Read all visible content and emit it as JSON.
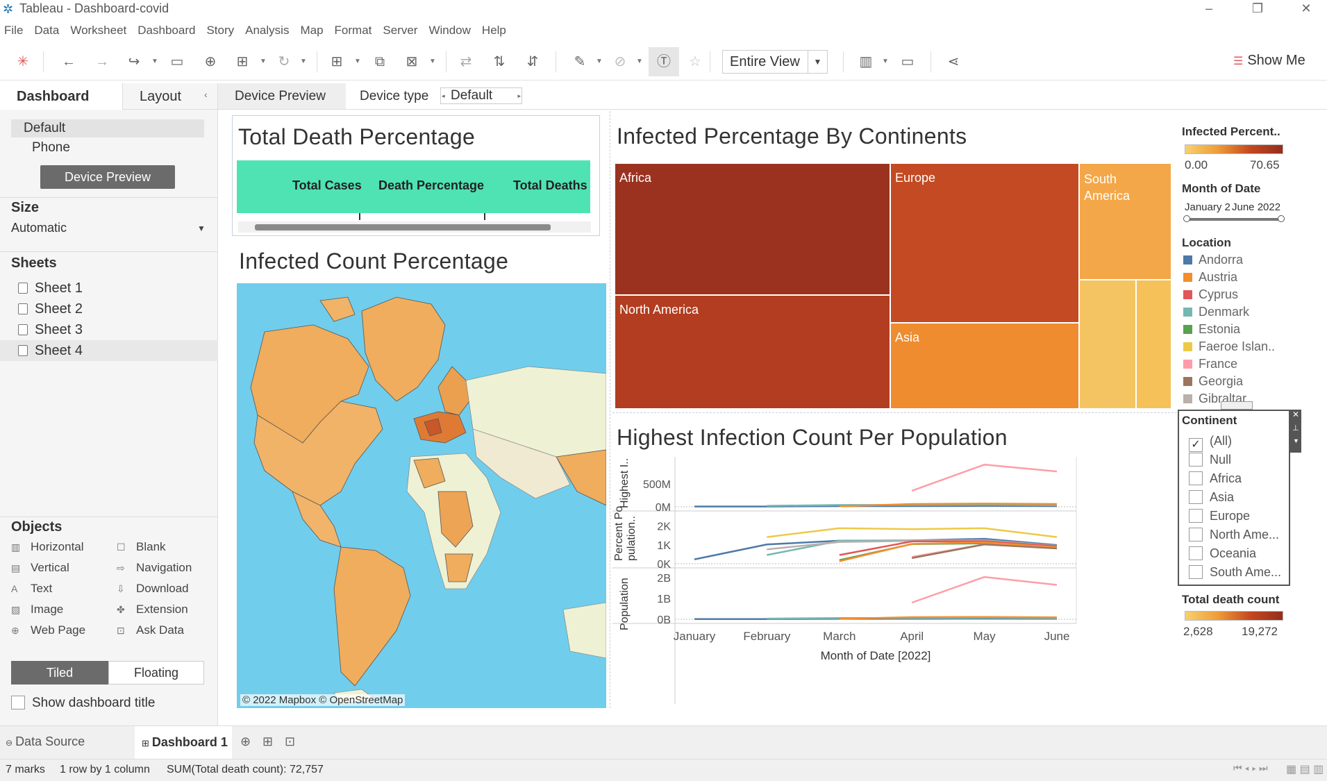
{
  "window": {
    "title": "Tableau - Dashboard-covid"
  },
  "menu": [
    "File",
    "Data",
    "Worksheet",
    "Dashboard",
    "Story",
    "Analysis",
    "Map",
    "Format",
    "Server",
    "Window",
    "Help"
  ],
  "toolbar": {
    "fit_value": "Entire View",
    "show_me": "Show Me"
  },
  "left_panel": {
    "tabs": [
      "Dashboard",
      "Layout"
    ],
    "devices": [
      "Default",
      "Phone"
    ],
    "device_preview_button": "Device Preview",
    "size_title": "Size",
    "size_value": "Automatic",
    "sheets_title": "Sheets",
    "sheets": [
      "Sheet 1",
      "Sheet 2",
      "Sheet 3",
      "Sheet 4"
    ],
    "objects_title": "Objects",
    "objects": [
      {
        "label": "Horizontal",
        "icon": "horizontal-icon"
      },
      {
        "label": "Blank",
        "icon": "blank-icon"
      },
      {
        "label": "Vertical",
        "icon": "vertical-icon"
      },
      {
        "label": "Navigation",
        "icon": "navigation-icon"
      },
      {
        "label": "Text",
        "icon": "text-icon"
      },
      {
        "label": "Download",
        "icon": "download-icon"
      },
      {
        "label": "Image",
        "icon": "image-icon"
      },
      {
        "label": "Extension",
        "icon": "extension-icon"
      },
      {
        "label": "Web Page",
        "icon": "web-page-icon"
      },
      {
        "label": "Ask Data",
        "icon": "ask-data-icon"
      }
    ],
    "tiled": "Tiled",
    "floating": "Floating",
    "show_title": "Show dashboard title"
  },
  "dash_header": {
    "device_preview": "Device Preview",
    "device_type_label": "Device type",
    "device_type_value": "Default"
  },
  "views": {
    "total_death": {
      "title": "Total Death Percentage",
      "columns": [
        "Total Cases",
        "Death Percentage",
        "Total Deaths"
      ]
    },
    "infected_map": {
      "title": "Infected Count Percentage",
      "attribution": "© 2022 Mapbox © OpenStreetMap"
    },
    "treemap": {
      "title": "Infected Percentage By Continents",
      "blocks": [
        {
          "label": "Africa",
          "color": "#9b3220"
        },
        {
          "label": "North America",
          "color": "#b23d20"
        },
        {
          "label": "Europe",
          "color": "#c34a22"
        },
        {
          "label": "Asia",
          "color": "#ee8c2f"
        },
        {
          "label": "South America",
          "color": "#f4a748"
        },
        {
          "label": "",
          "color": "#f5c462"
        },
        {
          "label": "",
          "color": "#f6c158"
        }
      ]
    },
    "line_chart": {
      "title": "Highest Infection Count Per Population",
      "xlabel": "Month of Date [2022]"
    }
  },
  "legends": {
    "infected_percent": {
      "title": "Infected Percent..",
      "min": "0.00",
      "max": "70.65"
    },
    "month_filter": {
      "title": "Month of Date",
      "from": "January 2",
      "to": "June 2022"
    },
    "location": {
      "title": "Location",
      "items": [
        {
          "label": "Andorra",
          "color": "#4e79a7"
        },
        {
          "label": "Austria",
          "color": "#f28e2b"
        },
        {
          "label": "Cyprus",
          "color": "#e15759"
        },
        {
          "label": "Denmark",
          "color": "#76b7b2"
        },
        {
          "label": "Estonia",
          "color": "#59a14f"
        },
        {
          "label": "Faeroe Islan..",
          "color": "#edc948"
        },
        {
          "label": "France",
          "color": "#ff9da7"
        },
        {
          "label": "Georgia",
          "color": "#9c755f"
        },
        {
          "label": "Gibraltar",
          "color": "#bab0ac"
        }
      ]
    },
    "continent": {
      "title": "Continent",
      "items": [
        {
          "label": "(All)",
          "checked": "✓"
        },
        {
          "label": "Null",
          "checked": ""
        },
        {
          "label": "Africa",
          "checked": ""
        },
        {
          "label": "Asia",
          "checked": ""
        },
        {
          "label": "Europe",
          "checked": ""
        },
        {
          "label": "North Ame...",
          "checked": ""
        },
        {
          "label": "Oceania",
          "checked": ""
        },
        {
          "label": "South Ame...",
          "checked": ""
        }
      ]
    },
    "total_death": {
      "title": "Total death count",
      "min": "2,628",
      "max": "19,272"
    }
  },
  "bottom": {
    "data_source": "Data Source",
    "dashboard_tab": "Dashboard 1"
  },
  "status": {
    "marks": "7 marks",
    "layout": "1 row by 1 column",
    "sum": "SUM(Total death count): 72,757"
  },
  "chart_data": {
    "type": "line",
    "title": "Highest Infection Count Per Population",
    "xlabel": "Month of Date [2022]",
    "categories": [
      "January",
      "February",
      "March",
      "April",
      "May",
      "June"
    ],
    "panels": [
      {
        "ylabel": "Highest I..",
        "ticks": [
          "500M",
          "0M"
        ],
        "ylim": [
          0,
          1000000000
        ],
        "series": [
          {
            "name": "Andorra",
            "values": [
              5000000,
              5000000,
              15000000,
              15000000,
              20000000,
              15000000
            ]
          },
          {
            "name": "Denmark",
            "values": [
              null,
              20000000,
              40000000,
              40000000,
              45000000,
              35000000
            ]
          },
          {
            "name": "Austria",
            "values": [
              null,
              null,
              10000000,
              60000000,
              70000000,
              60000000
            ]
          },
          {
            "name": "France",
            "values": [
              null,
              null,
              null,
              350000000,
              920000000,
              770000000
            ]
          }
        ]
      },
      {
        "ylabel": "Percent Po pulation..",
        "ticks": [
          "2K",
          "1K",
          "0K"
        ],
        "ylim": [
          0,
          2500
        ],
        "series": [
          {
            "name": "Andorra",
            "values": [
              230,
              1020,
              1220,
              1230,
              1320,
              990
            ]
          },
          {
            "name": "Faeroe Islan..",
            "values": [
              null,
              1410,
              1880,
              1830,
              1880,
              1410
            ]
          },
          {
            "name": "Denmark",
            "values": [
              null,
              460,
              1210,
              1230,
              1250,
              950
            ]
          },
          {
            "name": "Gibraltar",
            "values": [
              null,
              760,
              1150,
              1210,
              1230,
              940
            ]
          },
          {
            "name": "Cyprus",
            "values": [
              null,
              null,
              460,
              1180,
              1190,
              930
            ]
          },
          {
            "name": "Estonia",
            "values": [
              null,
              null,
              190,
              1040,
              1080,
              830
            ]
          },
          {
            "name": "Austria",
            "values": [
              null,
              null,
              130,
              1050,
              1130,
              870
            ]
          },
          {
            "name": "France",
            "values": [
              null,
              null,
              null,
              360,
              1030,
              820
            ]
          },
          {
            "name": "Georgia",
            "values": [
              null,
              null,
              null,
              300,
              1020,
              810
            ]
          }
        ]
      },
      {
        "ylabel": "Population",
        "ticks": [
          "2B",
          "1B",
          "0B"
        ],
        "ylim": [
          0,
          2200000000
        ],
        "series": [
          {
            "name": "Andorra",
            "values": [
              10000000,
              10000000,
              20000000,
              20000000,
              30000000,
              20000000
            ]
          },
          {
            "name": "Denmark",
            "values": [
              null,
              30000000,
              60000000,
              60000000,
              70000000,
              50000000
            ]
          },
          {
            "name": "Austria",
            "values": [
              null,
              null,
              20000000,
              100000000,
              110000000,
              90000000
            ]
          },
          {
            "name": "France",
            "values": [
              null,
              null,
              null,
              800000000,
              2030000000,
              1650000000
            ]
          }
        ]
      }
    ]
  }
}
